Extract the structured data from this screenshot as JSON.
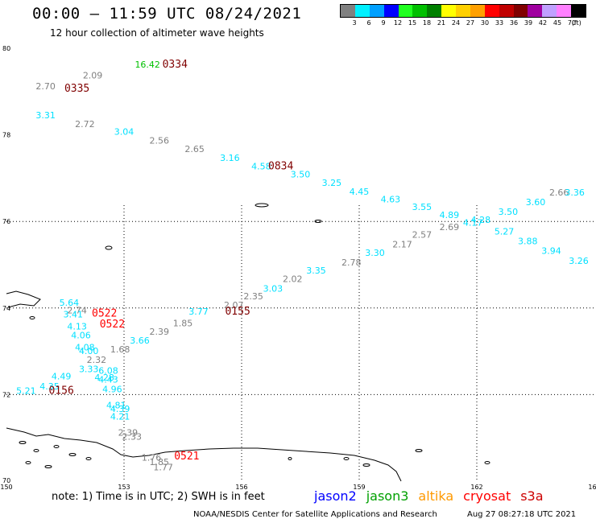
{
  "header": {
    "title": "00:00 – 11:59 UTC 08/24/2021",
    "subtitle": "12 hour collection of altimeter wave heights"
  },
  "legend": {
    "unit": "(ft)",
    "items": [
      {
        "label": "3",
        "color": "#808080"
      },
      {
        "label": "6",
        "color": "#00f0ff"
      },
      {
        "label": "9",
        "color": "#00a0ff"
      },
      {
        "label": "12",
        "color": "#0000ff"
      },
      {
        "label": "15",
        "color": "#20ff20"
      },
      {
        "label": "18",
        "color": "#00c000"
      },
      {
        "label": "21",
        "color": "#008000"
      },
      {
        "label": "24",
        "color": "#ffff00"
      },
      {
        "label": "27",
        "color": "#ffd000"
      },
      {
        "label": "30",
        "color": "#ffa000"
      },
      {
        "label": "33",
        "color": "#ff0000"
      },
      {
        "label": "36",
        "color": "#c00000"
      },
      {
        "label": "39",
        "color": "#800000"
      },
      {
        "label": "42",
        "color": "#a000a0"
      },
      {
        "label": "45",
        "color": "#c0a0ff"
      },
      {
        "label": "70",
        "color": "#ff80ff"
      },
      {
        "label": "",
        "color": "#000000"
      }
    ]
  },
  "axes": {
    "lat_labels": [
      "80",
      "78",
      "76",
      "74",
      "72",
      "70"
    ],
    "lon_labels": [
      "150",
      "153",
      "156",
      "159",
      "162",
      "165"
    ]
  },
  "map_data": {
    "extent": {
      "lon": [
        150,
        165
      ],
      "lat": [
        70,
        80
      ]
    },
    "colors": {
      "gray": "#808080",
      "cyan": "#00e0ff",
      "green": "#00c000",
      "dark_red": "#800000",
      "red": "#ff0000"
    },
    "wave_heights": [
      {
        "v": "2.70",
        "c": "gray",
        "lon": 151.0,
        "lat": 79.05
      },
      {
        "v": "2.09",
        "c": "gray",
        "lon": 152.2,
        "lat": 79.3
      },
      {
        "v": "16.42",
        "c": "green",
        "lon": 153.6,
        "lat": 79.55
      },
      {
        "v": "3.31",
        "c": "cyan",
        "lon": 151.0,
        "lat": 78.38
      },
      {
        "v": "2.72",
        "c": "gray",
        "lon": 152.0,
        "lat": 78.18
      },
      {
        "v": "3.04",
        "c": "cyan",
        "lon": 153.0,
        "lat": 78.0
      },
      {
        "v": "2.56",
        "c": "gray",
        "lon": 153.9,
        "lat": 77.8
      },
      {
        "v": "2.65",
        "c": "gray",
        "lon": 154.8,
        "lat": 77.6
      },
      {
        "v": "3.16",
        "c": "cyan",
        "lon": 155.7,
        "lat": 77.4
      },
      {
        "v": "4.58",
        "c": "cyan",
        "lon": 156.5,
        "lat": 77.2
      },
      {
        "v": "3.50",
        "c": "cyan",
        "lon": 157.5,
        "lat": 77.02
      },
      {
        "v": "3.25",
        "c": "cyan",
        "lon": 158.3,
        "lat": 76.82
      },
      {
        "v": "4.45",
        "c": "cyan",
        "lon": 159.0,
        "lat": 76.62
      },
      {
        "v": "4.63",
        "c": "cyan",
        "lon": 159.8,
        "lat": 76.44
      },
      {
        "v": "3.55",
        "c": "cyan",
        "lon": 160.6,
        "lat": 76.26
      },
      {
        "v": "4.89",
        "c": "cyan",
        "lon": 161.3,
        "lat": 76.08
      },
      {
        "v": "4.17",
        "c": "cyan",
        "lon": 161.9,
        "lat": 75.9
      },
      {
        "v": "2.69",
        "c": "gray",
        "lon": 161.3,
        "lat": 75.8
      },
      {
        "v": "4.28",
        "c": "cyan",
        "lon": 162.1,
        "lat": 75.97
      },
      {
        "v": "3.50",
        "c": "cyan",
        "lon": 162.8,
        "lat": 76.15
      },
      {
        "v": "3.60",
        "c": "cyan",
        "lon": 163.5,
        "lat": 76.38
      },
      {
        "v": "2.66",
        "c": "gray",
        "lon": 164.1,
        "lat": 76.6
      },
      {
        "v": "3.36",
        "c": "cyan",
        "lon": 164.5,
        "lat": 76.6
      },
      {
        "v": "5.27",
        "c": "cyan",
        "lon": 162.7,
        "lat": 75.7
      },
      {
        "v": "3.88",
        "c": "cyan",
        "lon": 163.3,
        "lat": 75.47
      },
      {
        "v": "3.94",
        "c": "cyan",
        "lon": 163.9,
        "lat": 75.25
      },
      {
        "v": "3.26",
        "c": "cyan",
        "lon": 164.6,
        "lat": 75.02
      },
      {
        "v": "2.57",
        "c": "gray",
        "lon": 160.6,
        "lat": 75.62
      },
      {
        "v": "2.17",
        "c": "gray",
        "lon": 160.1,
        "lat": 75.4
      },
      {
        "v": "3.30",
        "c": "cyan",
        "lon": 159.4,
        "lat": 75.2
      },
      {
        "v": "2.78",
        "c": "gray",
        "lon": 158.8,
        "lat": 74.98
      },
      {
        "v": "3.35",
        "c": "cyan",
        "lon": 157.9,
        "lat": 74.8
      },
      {
        "v": "2.02",
        "c": "gray",
        "lon": 157.3,
        "lat": 74.6
      },
      {
        "v": "3.03",
        "c": "cyan",
        "lon": 156.8,
        "lat": 74.38
      },
      {
        "v": "2.35",
        "c": "gray",
        "lon": 156.3,
        "lat": 74.2
      },
      {
        "v": "2.07",
        "c": "gray",
        "lon": 155.8,
        "lat": 74.0
      },
      {
        "v": "3.77",
        "c": "cyan",
        "lon": 154.9,
        "lat": 73.85
      },
      {
        "v": "1.85",
        "c": "gray",
        "lon": 154.5,
        "lat": 73.58
      },
      {
        "v": "2.39",
        "c": "gray",
        "lon": 153.9,
        "lat": 73.38
      },
      {
        "v": "3.66",
        "c": "cyan",
        "lon": 153.4,
        "lat": 73.18
      },
      {
        "v": "1.68",
        "c": "gray",
        "lon": 152.9,
        "lat": 72.97
      },
      {
        "v": "5.64",
        "c": "cyan",
        "lon": 151.6,
        "lat": 74.05
      },
      {
        "v": "2.74",
        "c": "gray",
        "lon": 151.8,
        "lat": 73.88
      },
      {
        "v": "3.41",
        "c": "cyan",
        "lon": 151.7,
        "lat": 73.78
      },
      {
        "v": "4.13",
        "c": "cyan",
        "lon": 151.8,
        "lat": 73.5
      },
      {
        "v": "4.06",
        "c": "cyan",
        "lon": 151.9,
        "lat": 73.3
      },
      {
        "v": "4.08",
        "c": "cyan",
        "lon": 152.0,
        "lat": 73.02
      },
      {
        "v": "4.00",
        "c": "cyan",
        "lon": 152.1,
        "lat": 72.94
      },
      {
        "v": "2.32",
        "c": "gray",
        "lon": 152.3,
        "lat": 72.73
      },
      {
        "v": "3.33",
        "c": "cyan",
        "lon": 152.1,
        "lat": 72.52
      },
      {
        "v": "6.08",
        "c": "cyan",
        "lon": 152.6,
        "lat": 72.48
      },
      {
        "v": "4.28",
        "c": "cyan",
        "lon": 152.5,
        "lat": 72.32
      },
      {
        "v": "4.43",
        "c": "cyan",
        "lon": 152.6,
        "lat": 72.28
      },
      {
        "v": "4.49",
        "c": "cyan",
        "lon": 151.4,
        "lat": 72.35
      },
      {
        "v": "4.35",
        "c": "cyan",
        "lon": 151.1,
        "lat": 72.12
      },
      {
        "v": "5.21",
        "c": "cyan",
        "lon": 150.5,
        "lat": 72.02
      },
      {
        "v": "4.96",
        "c": "cyan",
        "lon": 152.7,
        "lat": 72.05
      },
      {
        "v": "4.81",
        "c": "cyan",
        "lon": 152.8,
        "lat": 71.68
      },
      {
        "v": "4.39",
        "c": "cyan",
        "lon": 152.9,
        "lat": 71.6
      },
      {
        "v": "4.21",
        "c": "cyan",
        "lon": 152.9,
        "lat": 71.42
      },
      {
        "v": "2.39",
        "c": "gray",
        "lon": 153.1,
        "lat": 71.05
      },
      {
        "v": "2.33",
        "c": "gray",
        "lon": 153.2,
        "lat": 70.96
      },
      {
        "v": "1.76",
        "c": "gray",
        "lon": 153.7,
        "lat": 70.47
      },
      {
        "v": "1.85",
        "c": "gray",
        "lon": 153.9,
        "lat": 70.37
      },
      {
        "v": "1.77",
        "c": "gray",
        "lon": 154.0,
        "lat": 70.25
      }
    ],
    "pass_times": [
      {
        "t": "0335",
        "c": "dark_red",
        "lon": 151.8,
        "lat": 79.0
      },
      {
        "t": "0334",
        "c": "dark_red",
        "lon": 154.3,
        "lat": 79.55
      },
      {
        "t": "0834",
        "c": "dark_red",
        "lon": 157.0,
        "lat": 77.2
      },
      {
        "t": "0155",
        "c": "dark_red",
        "lon": 155.9,
        "lat": 73.85
      },
      {
        "t": "0522",
        "c": "red",
        "lon": 152.5,
        "lat": 73.8
      },
      {
        "t": "0522",
        "c": "red",
        "lon": 152.7,
        "lat": 73.55
      },
      {
        "t": "0156",
        "c": "dark_red",
        "lon": 151.4,
        "lat": 72.02
      },
      {
        "t": "0521",
        "c": "red",
        "lon": 154.6,
        "lat": 70.5
      }
    ]
  },
  "footer": {
    "note": "note:  1) Time is in UTC;  2) SWH is in feet",
    "satellites": [
      {
        "name": "jason2",
        "color": "#0000ff"
      },
      {
        "name": "jason3",
        "color": "#00a000"
      },
      {
        "name": "altika",
        "color": "#ff9900"
      },
      {
        "name": "cryosat",
        "color": "#ff0000"
      },
      {
        "name": "s3a",
        "color": "#cc0000"
      }
    ],
    "credit": "NOAA/NESDIS Center for Satellite Applications and Research",
    "timestamp": "Aug 27 08:27:18 UTC 2021"
  }
}
